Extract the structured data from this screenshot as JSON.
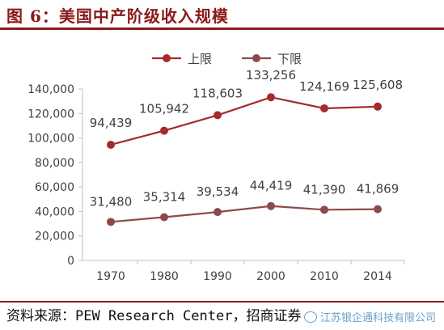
{
  "page": {
    "title": "图 6：美国中产阶级收入规模",
    "source": "资料来源：PEW Research Center，招商证券",
    "watermark": "江苏银企通科技有限公司"
  },
  "chart_data": {
    "type": "line",
    "title": "图 6：美国中产阶级收入规模",
    "xlabel": "",
    "ylabel": "",
    "categories": [
      "1970",
      "1980",
      "1990",
      "2000",
      "2010",
      "2014"
    ],
    "ylim": [
      0,
      140000
    ],
    "yticks": [
      0,
      20000,
      40000,
      60000,
      80000,
      100000,
      120000,
      140000
    ],
    "ytick_labels": [
      "0",
      "20,000",
      "40,000",
      "60,000",
      "80,000",
      "100,000",
      "120,000",
      "140,000"
    ],
    "legend_position": "top",
    "grid": false,
    "series": [
      {
        "name": "上限",
        "color": "#A52A2A",
        "values": [
          94439,
          105942,
          118603,
          133256,
          124169,
          125608
        ],
        "labels": [
          "94,439",
          "105,942",
          "118,603",
          "133,256",
          "124,169",
          "125,608"
        ]
      },
      {
        "name": "下限",
        "color": "#8B4A4A",
        "values": [
          31480,
          35314,
          39534,
          44419,
          41390,
          41869
        ],
        "labels": [
          "31,480",
          "35,314",
          "39,534",
          "44,419",
          "41,390",
          "41,869"
        ]
      }
    ]
  }
}
